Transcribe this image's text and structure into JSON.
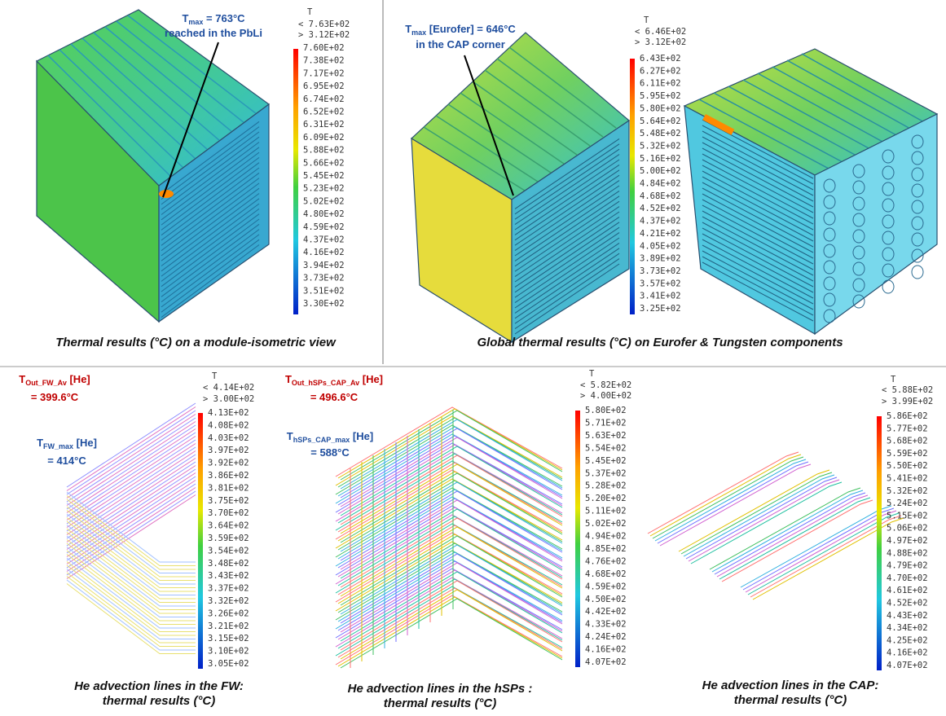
{
  "panels": [
    {
      "annotations": [
        {
          "symbol": "T",
          "subscript": "max",
          "suffix": " = 763°C",
          "line2": "reached in the PbLi"
        }
      ],
      "legend": {
        "title": "T",
        "max_label": "< 7.63E+02",
        "min_label": "> 3.12E+02",
        "levels": [
          "7.60E+02",
          "7.38E+02",
          "7.17E+02",
          "6.95E+02",
          "6.74E+02",
          "6.52E+02",
          "6.31E+02",
          "6.09E+02",
          "5.88E+02",
          "5.66E+02",
          "5.45E+02",
          "5.23E+02",
          "5.02E+02",
          "4.80E+02",
          "4.59E+02",
          "4.37E+02",
          "4.16E+02",
          "3.94E+02",
          "3.73E+02",
          "3.51E+02",
          "3.30E+02"
        ]
      },
      "caption": [
        "Thermal results (°C) on a module-isometric view"
      ]
    },
    {
      "annotations": [
        {
          "symbol": "T",
          "subscript": "max",
          "suffix": " [Eurofer] = 646°C",
          "line2": "in the CAP corner"
        }
      ],
      "legend": {
        "title": "T",
        "max_label": "< 6.46E+02",
        "min_label": "> 3.12E+02",
        "levels": [
          "6.43E+02",
          "6.27E+02",
          "6.11E+02",
          "5.95E+02",
          "5.80E+02",
          "5.64E+02",
          "5.48E+02",
          "5.32E+02",
          "5.16E+02",
          "5.00E+02",
          "4.84E+02",
          "4.68E+02",
          "4.52E+02",
          "4.37E+02",
          "4.21E+02",
          "4.05E+02",
          "3.89E+02",
          "3.73E+02",
          "3.57E+02",
          "3.41E+02",
          "3.25E+02"
        ]
      },
      "caption": [
        "Global thermal results (°C) on Eurofer & Tungsten components"
      ]
    },
    {
      "annotations": [
        {
          "symbol": "T",
          "subscript": "Out_FW_Av",
          "suffix": " [He]",
          "line2": "= 399.6°C"
        },
        {
          "symbol": "T",
          "subscript": "FW_max",
          "suffix": " [He]",
          "line2": "= 414°C"
        }
      ],
      "legend": {
        "title": "T",
        "max_label": "< 4.14E+02",
        "min_label": "> 3.00E+02",
        "levels": [
          "4.13E+02",
          "4.08E+02",
          "4.03E+02",
          "3.97E+02",
          "3.92E+02",
          "3.86E+02",
          "3.81E+02",
          "3.75E+02",
          "3.70E+02",
          "3.64E+02",
          "3.59E+02",
          "3.54E+02",
          "3.48E+02",
          "3.43E+02",
          "3.37E+02",
          "3.32E+02",
          "3.26E+02",
          "3.21E+02",
          "3.15E+02",
          "3.10E+02",
          "3.05E+02"
        ]
      },
      "caption": [
        "He advection lines in the FW:",
        "thermal results (°C)"
      ]
    },
    {
      "annotations": [
        {
          "symbol": "T",
          "subscript": "Out_hSPs_CAP_Av",
          "suffix": " [He]",
          "line2": "= 496.6°C"
        },
        {
          "symbol": "T",
          "subscript": "hSPs_CAP_max",
          "suffix": " [He]",
          "line2": "= 588°C"
        }
      ],
      "legend": {
        "title": "T",
        "max_label": "< 5.82E+02",
        "min_label": "> 4.00E+02",
        "levels": [
          "5.80E+02",
          "5.71E+02",
          "5.63E+02",
          "5.54E+02",
          "5.45E+02",
          "5.37E+02",
          "5.28E+02",
          "5.20E+02",
          "5.11E+02",
          "5.02E+02",
          "4.94E+02",
          "4.85E+02",
          "4.76E+02",
          "4.68E+02",
          "4.59E+02",
          "4.50E+02",
          "4.42E+02",
          "4.33E+02",
          "4.24E+02",
          "4.16E+02",
          "4.07E+02"
        ]
      },
      "caption": [
        "He advection lines in the hSPs :",
        "thermal results (°C)"
      ]
    },
    {
      "annotations": [],
      "legend": {
        "title": "T",
        "max_label": "< 5.88E+02",
        "min_label": "> 3.99E+02",
        "levels": [
          "5.86E+02",
          "5.77E+02",
          "5.68E+02",
          "5.59E+02",
          "5.50E+02",
          "5.41E+02",
          "5.32E+02",
          "5.24E+02",
          "5.15E+02",
          "5.06E+02",
          "4.97E+02",
          "4.88E+02",
          "4.79E+02",
          "4.70E+02",
          "4.61E+02",
          "4.52E+02",
          "4.43E+02",
          "4.34E+02",
          "4.25E+02",
          "4.16E+02",
          "4.07E+02"
        ]
      },
      "caption": [
        "He advection lines in the CAP:",
        "thermal results (°C)"
      ]
    }
  ]
}
